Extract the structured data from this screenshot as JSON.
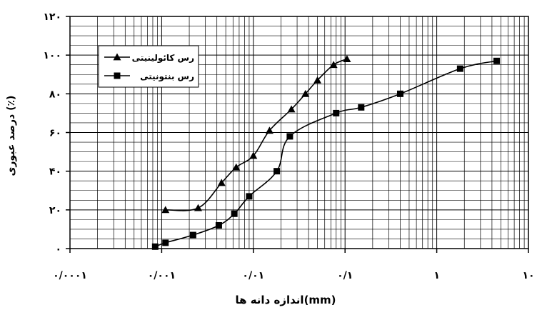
{
  "chart_data": {
    "type": "line",
    "title": "",
    "xlabel": "اندازه دانه ها(mm)",
    "ylabel": "درصد عبوری (٪)",
    "x_scale": "log",
    "xlim": [
      0.0001,
      10
    ],
    "ylim": [
      0,
      120
    ],
    "x_ticks": [
      {
        "value": 0.0001,
        "label": "۰/۰۰۰۱"
      },
      {
        "value": 0.001,
        "label": "۰/۰۰۱"
      },
      {
        "value": 0.01,
        "label": "۰/۰۱"
      },
      {
        "value": 0.1,
        "label": "۰/۱"
      },
      {
        "value": 1,
        "label": "۱"
      },
      {
        "value": 10,
        "label": "۱۰"
      }
    ],
    "y_ticks": [
      {
        "value": 0,
        "label": "۰"
      },
      {
        "value": 20,
        "label": "۲۰"
      },
      {
        "value": 40,
        "label": "۴۰"
      },
      {
        "value": 60,
        "label": "۶۰"
      },
      {
        "value": 80,
        "label": "۸۰"
      },
      {
        "value": 100,
        "label": "۱۰۰"
      },
      {
        "value": 120,
        "label": "۱۲۰"
      }
    ],
    "grid": true,
    "legend_position": "top-left",
    "series": [
      {
        "name": "رس کائولینیتی",
        "marker": "triangle",
        "color": "#000000",
        "points": [
          {
            "x": 0.0011,
            "y": 20
          },
          {
            "x": 0.0025,
            "y": 21
          },
          {
            "x": 0.0045,
            "y": 34
          },
          {
            "x": 0.0065,
            "y": 42
          },
          {
            "x": 0.01,
            "y": 48
          },
          {
            "x": 0.015,
            "y": 61
          },
          {
            "x": 0.026,
            "y": 72
          },
          {
            "x": 0.037,
            "y": 80
          },
          {
            "x": 0.05,
            "y": 87
          },
          {
            "x": 0.075,
            "y": 95
          },
          {
            "x": 0.105,
            "y": 98
          }
        ]
      },
      {
        "name": "رس بنتونیتی",
        "marker": "square",
        "color": "#000000",
        "points": [
          {
            "x": 0.00085,
            "y": 1
          },
          {
            "x": 0.0011,
            "y": 3
          },
          {
            "x": 0.0022,
            "y": 7
          },
          {
            "x": 0.0042,
            "y": 12
          },
          {
            "x": 0.0062,
            "y": 18
          },
          {
            "x": 0.009,
            "y": 27
          },
          {
            "x": 0.018,
            "y": 40
          },
          {
            "x": 0.025,
            "y": 58
          },
          {
            "x": 0.08,
            "y": 70
          },
          {
            "x": 0.15,
            "y": 73
          },
          {
            "x": 0.4,
            "y": 80
          },
          {
            "x": 1.8,
            "y": 93
          },
          {
            "x": 4.5,
            "y": 97
          }
        ]
      }
    ]
  }
}
